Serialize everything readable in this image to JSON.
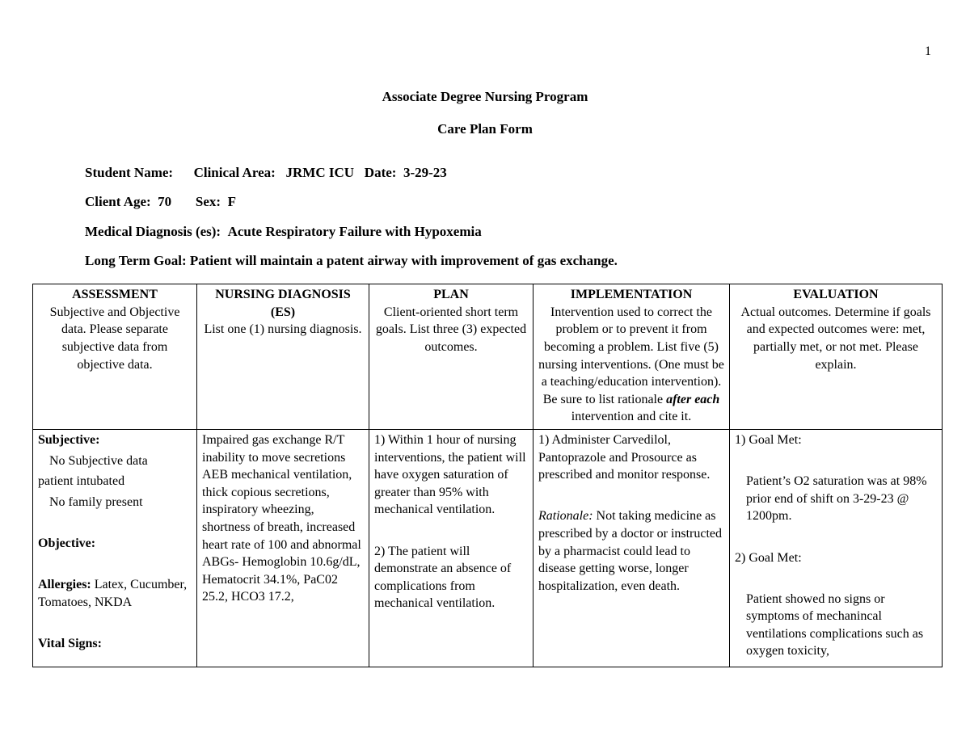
{
  "page_number": "1",
  "heading1": "Associate Degree Nursing Program",
  "heading2": "Care Plan Form",
  "meta": {
    "line1": "Student Name:      Clinical Area:   JRMC ICU   Date:  3-29-23",
    "line2": "Client Age:  70       Sex:  F",
    "line3": "Medical Diagnosis (es):  Acute Respiratory Failure with Hypoxemia",
    "line4": "Long Term Goal: Patient will maintain a patent airway with improvement of gas exchange."
  },
  "columns": {
    "assessment": {
      "title": "ASSESSMENT",
      "desc": "Subjective and Objective data.  Please separate subjective data from objective data."
    },
    "diagnosis": {
      "title": "NURSING DIAGNOSIS (ES)",
      "desc": "List one (1) nursing diagnosis."
    },
    "plan": {
      "title": "PLAN",
      "desc": "Client-oriented short term goals. List three (3) expected outcomes."
    },
    "implementation": {
      "title": "IMPLEMENTATION",
      "desc_pre": "Intervention used to correct the problem or to prevent it from becoming a problem. List five (5) nursing interventions. (One must be a teaching/education intervention).  Be sure to list rationale ",
      "desc_em": "after each",
      "desc_post": " intervention and cite it."
    },
    "evaluation": {
      "title": "EVALUATION",
      "desc": "Actual outcomes. Determine if goals and expected outcomes were:  met, partially met, or not met.  Please explain."
    }
  },
  "row": {
    "assessment": {
      "subjective_label": "Subjective:",
      "subjective_l1": "No Subjective data",
      "subjective_l2": "patient intubated",
      "subjective_l3": "No family present",
      "objective_label": "Objective:",
      "allergies_label": "Allergies: ",
      "allergies_val": "Latex, Cucumber, Tomatoes, NKDA",
      "vitals_label": "Vital Signs:"
    },
    "diagnosis": "Impaired gas exchange R/T inability to move secretions AEB mechanical ventilation, thick copious secretions, inspiratory wheezing, shortness of breath, increased heart rate of 100 and abnormal ABGs- Hemoglobin 10.6g/dL, Hematocrit 34.1%, PaC02 25.2, HCO3 17.2,",
    "plan": {
      "p1": "1) Within 1 hour of nursing interventions, the patient will have oxygen saturation of greater than 95% with mechanical ventilation.",
      "p2": "2) The patient will demonstrate an absence of complications from mechanical ventilation."
    },
    "implementation": {
      "i1": "1) Administer Carvedilol, Pantoprazole and Prosource as prescribed and monitor response.",
      "rationale_label": "Rationale:",
      "rationale_text": " Not taking medicine as prescribed by a doctor or instructed by a pharmacist could lead to disease getting worse, longer hospitalization, even death."
    },
    "evaluation": {
      "e1_label": "1) Goal Met:",
      "e1_text": "Patient’s O2 saturation was at 98% prior end of shift on 3-29-23 @ 1200pm.",
      "e2_label": "2) Goal Met:",
      "e2_text": "Patient showed no signs or symptoms of mechanincal ventilations complications such as oxygen toxicity,"
    }
  }
}
